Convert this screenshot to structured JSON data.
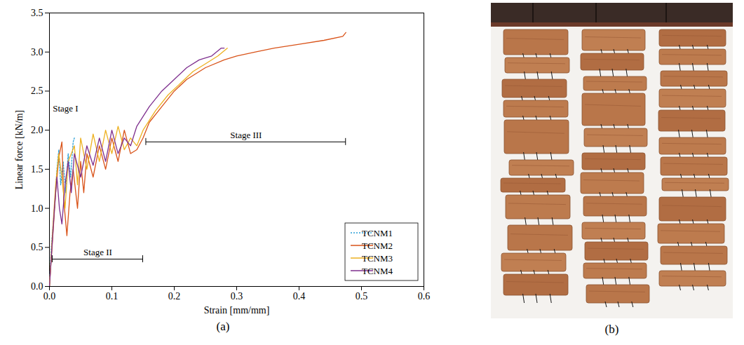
{
  "chart_data": {
    "type": "line",
    "panel_label": "(a)",
    "x_label": "Strain [mm/mm]",
    "y_label": "Linear force [kN/m]",
    "xlim": [
      0,
      0.6
    ],
    "xticks": [
      {
        "value": 0,
        "label": "0.0"
      },
      0.1,
      0.2,
      0.3,
      0.4,
      0.5,
      0.6
    ],
    "ylim": [
      0,
      3.5
    ],
    "yticks": [
      {
        "value": 0,
        "label": "0.0"
      },
      0.5,
      {
        "value": 1,
        "label": "1.0"
      },
      1.5,
      {
        "value": 2,
        "label": "2.0"
      },
      2.5,
      {
        "value": 3,
        "label": "3.0"
      },
      3.5
    ],
    "grid": false,
    "legend": "bottom right",
    "annotations": [
      {
        "text": "Stage I",
        "x": 0.003,
        "y": 2.28
      },
      {
        "text": "Stage II",
        "x": [
          0.005,
          0.15
        ],
        "y": 0.35
      },
      {
        "text": "Stage III",
        "x": [
          0.155,
          0.475
        ],
        "y": 1.85
      }
    ],
    "series": [
      {
        "name": "TCNM1",
        "color": "#2a9fd6",
        "line_style": "dotted",
        "x": [
          0,
          0.003,
          0.008,
          0.012,
          0.015,
          0.018,
          0.022,
          0.026,
          0.03,
          0.034,
          0.038,
          0.04
        ],
        "values": [
          0,
          0.5,
          1.0,
          1.5,
          1.75,
          1.3,
          1.6,
          1.2,
          1.7,
          1.4,
          1.85,
          1.9
        ]
      },
      {
        "name": "TCNM2",
        "color": "#d95319",
        "line_style": "solid",
        "x": [
          0,
          0.005,
          0.01,
          0.015,
          0.02,
          0.023,
          0.028,
          0.033,
          0.038,
          0.045,
          0.05,
          0.055,
          0.06,
          0.07,
          0.08,
          0.09,
          0.1,
          0.11,
          0.12,
          0.13,
          0.14,
          0.15,
          0.16,
          0.18,
          0.2,
          0.22,
          0.25,
          0.28,
          0.3,
          0.33,
          0.36,
          0.4,
          0.44,
          0.47,
          0.475
        ],
        "values": [
          0,
          0.6,
          1.2,
          1.65,
          1.85,
          1.1,
          0.65,
          1.2,
          1.5,
          1.0,
          1.6,
          1.2,
          1.7,
          1.4,
          1.8,
          1.5,
          1.9,
          1.6,
          2.0,
          1.7,
          1.75,
          1.9,
          2.1,
          2.3,
          2.5,
          2.65,
          2.8,
          2.9,
          2.95,
          3.0,
          3.05,
          3.1,
          3.15,
          3.2,
          3.25
        ]
      },
      {
        "name": "TCNM3",
        "color": "#edb120",
        "line_style": "solid",
        "x": [
          0,
          0.005,
          0.01,
          0.015,
          0.02,
          0.025,
          0.03,
          0.04,
          0.045,
          0.05,
          0.06,
          0.07,
          0.08,
          0.09,
          0.1,
          0.11,
          0.12,
          0.13,
          0.14,
          0.15,
          0.17,
          0.19,
          0.21,
          0.23,
          0.25,
          0.27,
          0.285
        ],
        "values": [
          0,
          0.7,
          1.3,
          1.7,
          1.4,
          1.0,
          1.6,
          1.8,
          1.3,
          1.9,
          1.5,
          1.95,
          1.6,
          2.0,
          1.7,
          2.05,
          1.75,
          1.9,
          1.8,
          2.0,
          2.25,
          2.45,
          2.6,
          2.75,
          2.85,
          2.95,
          3.05
        ]
      },
      {
        "name": "TCNM4",
        "color": "#7e2f8e",
        "line_style": "solid",
        "x": [
          0,
          0.004,
          0.008,
          0.012,
          0.016,
          0.02,
          0.025,
          0.03,
          0.035,
          0.04,
          0.05,
          0.06,
          0.07,
          0.08,
          0.09,
          0.1,
          0.11,
          0.12,
          0.13,
          0.14,
          0.16,
          0.18,
          0.2,
          0.22,
          0.24,
          0.26,
          0.275,
          0.28
        ],
        "values": [
          0,
          0.5,
          1.0,
          1.4,
          1.0,
          0.8,
          1.3,
          1.6,
          1.2,
          1.7,
          1.4,
          1.8,
          1.55,
          1.9,
          1.6,
          2.0,
          1.7,
          1.9,
          1.8,
          2.05,
          2.3,
          2.5,
          2.65,
          2.8,
          2.9,
          2.95,
          3.05,
          3.05
        ]
      }
    ]
  },
  "photo": {
    "panel_label": "(b)"
  }
}
